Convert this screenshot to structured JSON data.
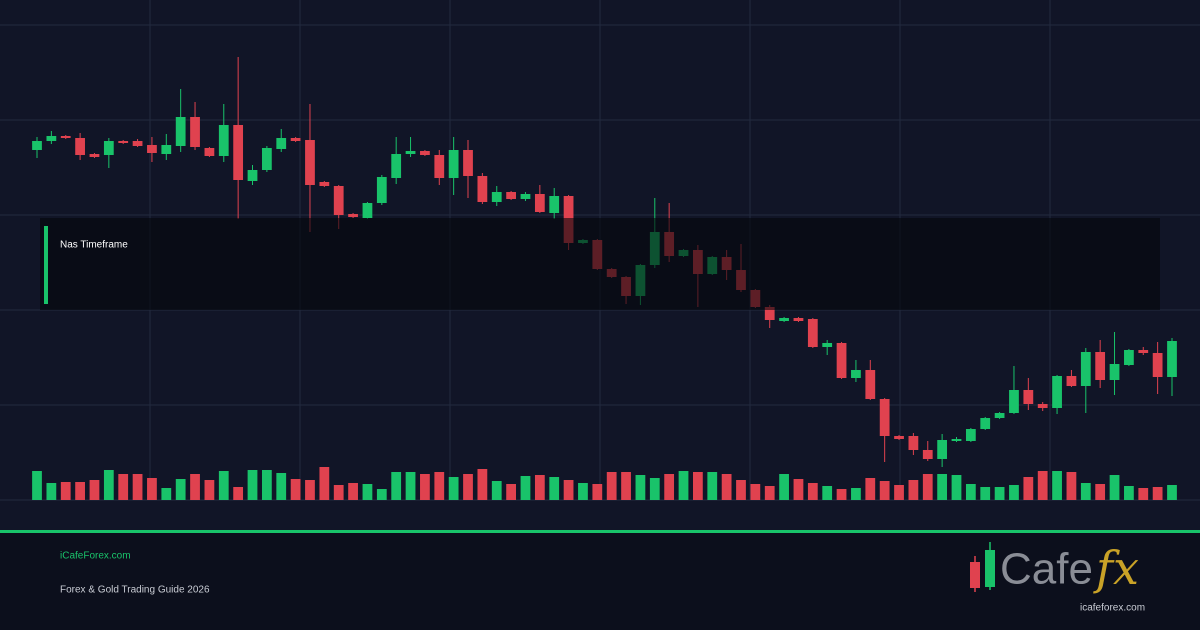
{
  "chart_data": {
    "type": "candlestick",
    "colors": {
      "up": "#19c36a",
      "down": "#e0424f"
    },
    "ylim": [
      30,
      505
    ],
    "yticks": [
      505,
      410,
      315,
      220,
      125,
      30
    ],
    "grid": true,
    "open": [
      380,
      389,
      394,
      392,
      376,
      375,
      389,
      389,
      385,
      376,
      384,
      413,
      382,
      374,
      405,
      349,
      360,
      381,
      392,
      390,
      348,
      344,
      316,
      312,
      327,
      352,
      376,
      379,
      375,
      352,
      380,
      354,
      328,
      338,
      331,
      336,
      317,
      334,
      287,
      290,
      261,
      253,
      234,
      265,
      298,
      274,
      280,
      256,
      273,
      260,
      240,
      223,
      209,
      212,
      211,
      183,
      187,
      152,
      160,
      131,
      94,
      94,
      80,
      71,
      89,
      89,
      101,
      112,
      117,
      140,
      126,
      122,
      154,
      144,
      178,
      150,
      165,
      180,
      177,
      153
    ],
    "high": [
      393,
      399,
      395,
      397,
      377,
      392,
      390,
      391,
      393,
      396,
      441,
      428,
      383,
      426,
      473,
      365,
      384,
      401,
      393,
      426,
      349,
      345,
      317,
      328,
      355,
      393,
      393,
      380,
      380,
      393,
      390,
      357,
      344,
      339,
      338,
      345,
      342,
      335,
      291,
      291,
      262,
      254,
      266,
      332,
      327,
      281,
      285,
      274,
      280,
      286,
      241,
      225,
      213,
      213,
      212,
      190,
      188,
      170,
      170,
      132,
      95,
      97,
      89,
      96,
      93,
      102,
      113,
      118,
      164,
      152,
      128,
      155,
      160,
      182,
      190,
      198,
      181,
      183,
      188,
      192
    ],
    "low": [
      372,
      386,
      391,
      370,
      372,
      362,
      386,
      383,
      368,
      370,
      378,
      380,
      373,
      368,
      311,
      345,
      358,
      378,
      388,
      298,
      343,
      301,
      312,
      311,
      325,
      346,
      373,
      374,
      345,
      335,
      332,
      326,
      324,
      330,
      329,
      317,
      311,
      280,
      286,
      260,
      252,
      226,
      225,
      262,
      268,
      273,
      223,
      255,
      250,
      238,
      222,
      202,
      208,
      208,
      182,
      175,
      151,
      148,
      130,
      68,
      90,
      75,
      69,
      63,
      88,
      88,
      100,
      111,
      116,
      120,
      119,
      116,
      143,
      117,
      142,
      135,
      164,
      175,
      136,
      134
    ],
    "close": [
      389,
      394,
      392,
      375,
      373,
      389,
      387,
      384,
      377,
      385,
      413,
      383,
      374,
      405,
      350,
      360,
      382,
      392,
      389,
      345,
      344,
      315,
      313,
      327,
      353,
      376,
      379,
      375,
      352,
      380,
      354,
      328,
      338,
      331,
      336,
      318,
      334,
      287,
      290,
      261,
      253,
      234,
      265,
      298,
      274,
      280,
      256,
      273,
      260,
      240,
      223,
      210,
      212,
      209,
      183,
      187,
      152,
      160,
      131,
      94,
      91,
      80,
      71,
      90,
      91,
      101,
      112,
      117,
      140,
      126,
      122,
      154,
      144,
      178,
      150,
      166,
      180,
      177,
      153,
      189
    ],
    "volume": [
      29,
      17,
      18,
      18,
      20,
      30,
      26,
      26,
      22,
      12,
      21,
      26,
      20,
      29,
      13,
      30,
      30,
      27,
      21,
      20,
      33,
      15,
      17,
      16,
      11,
      28,
      28,
      26,
      28,
      23,
      26,
      31,
      19,
      16,
      24,
      25,
      23,
      20,
      17,
      16,
      28,
      28,
      25,
      22,
      26,
      29,
      28,
      28,
      26,
      20,
      16,
      14,
      26,
      21,
      17,
      14,
      11,
      12,
      22,
      19,
      15,
      20,
      26,
      26,
      25,
      16,
      13,
      13,
      15,
      23,
      29,
      29,
      28,
      17,
      16,
      25,
      14,
      12,
      13,
      15
    ],
    "volume_lim": [
      0,
      100
    ],
    "label": "Nas Timeframe"
  },
  "footer": {
    "site": "iCafeForex.com",
    "tagline": "Forex & Gold Trading Guide 2026"
  },
  "logo": {
    "word": "Cafe",
    "accent": "fx",
    "url": "icafeforex.com"
  }
}
